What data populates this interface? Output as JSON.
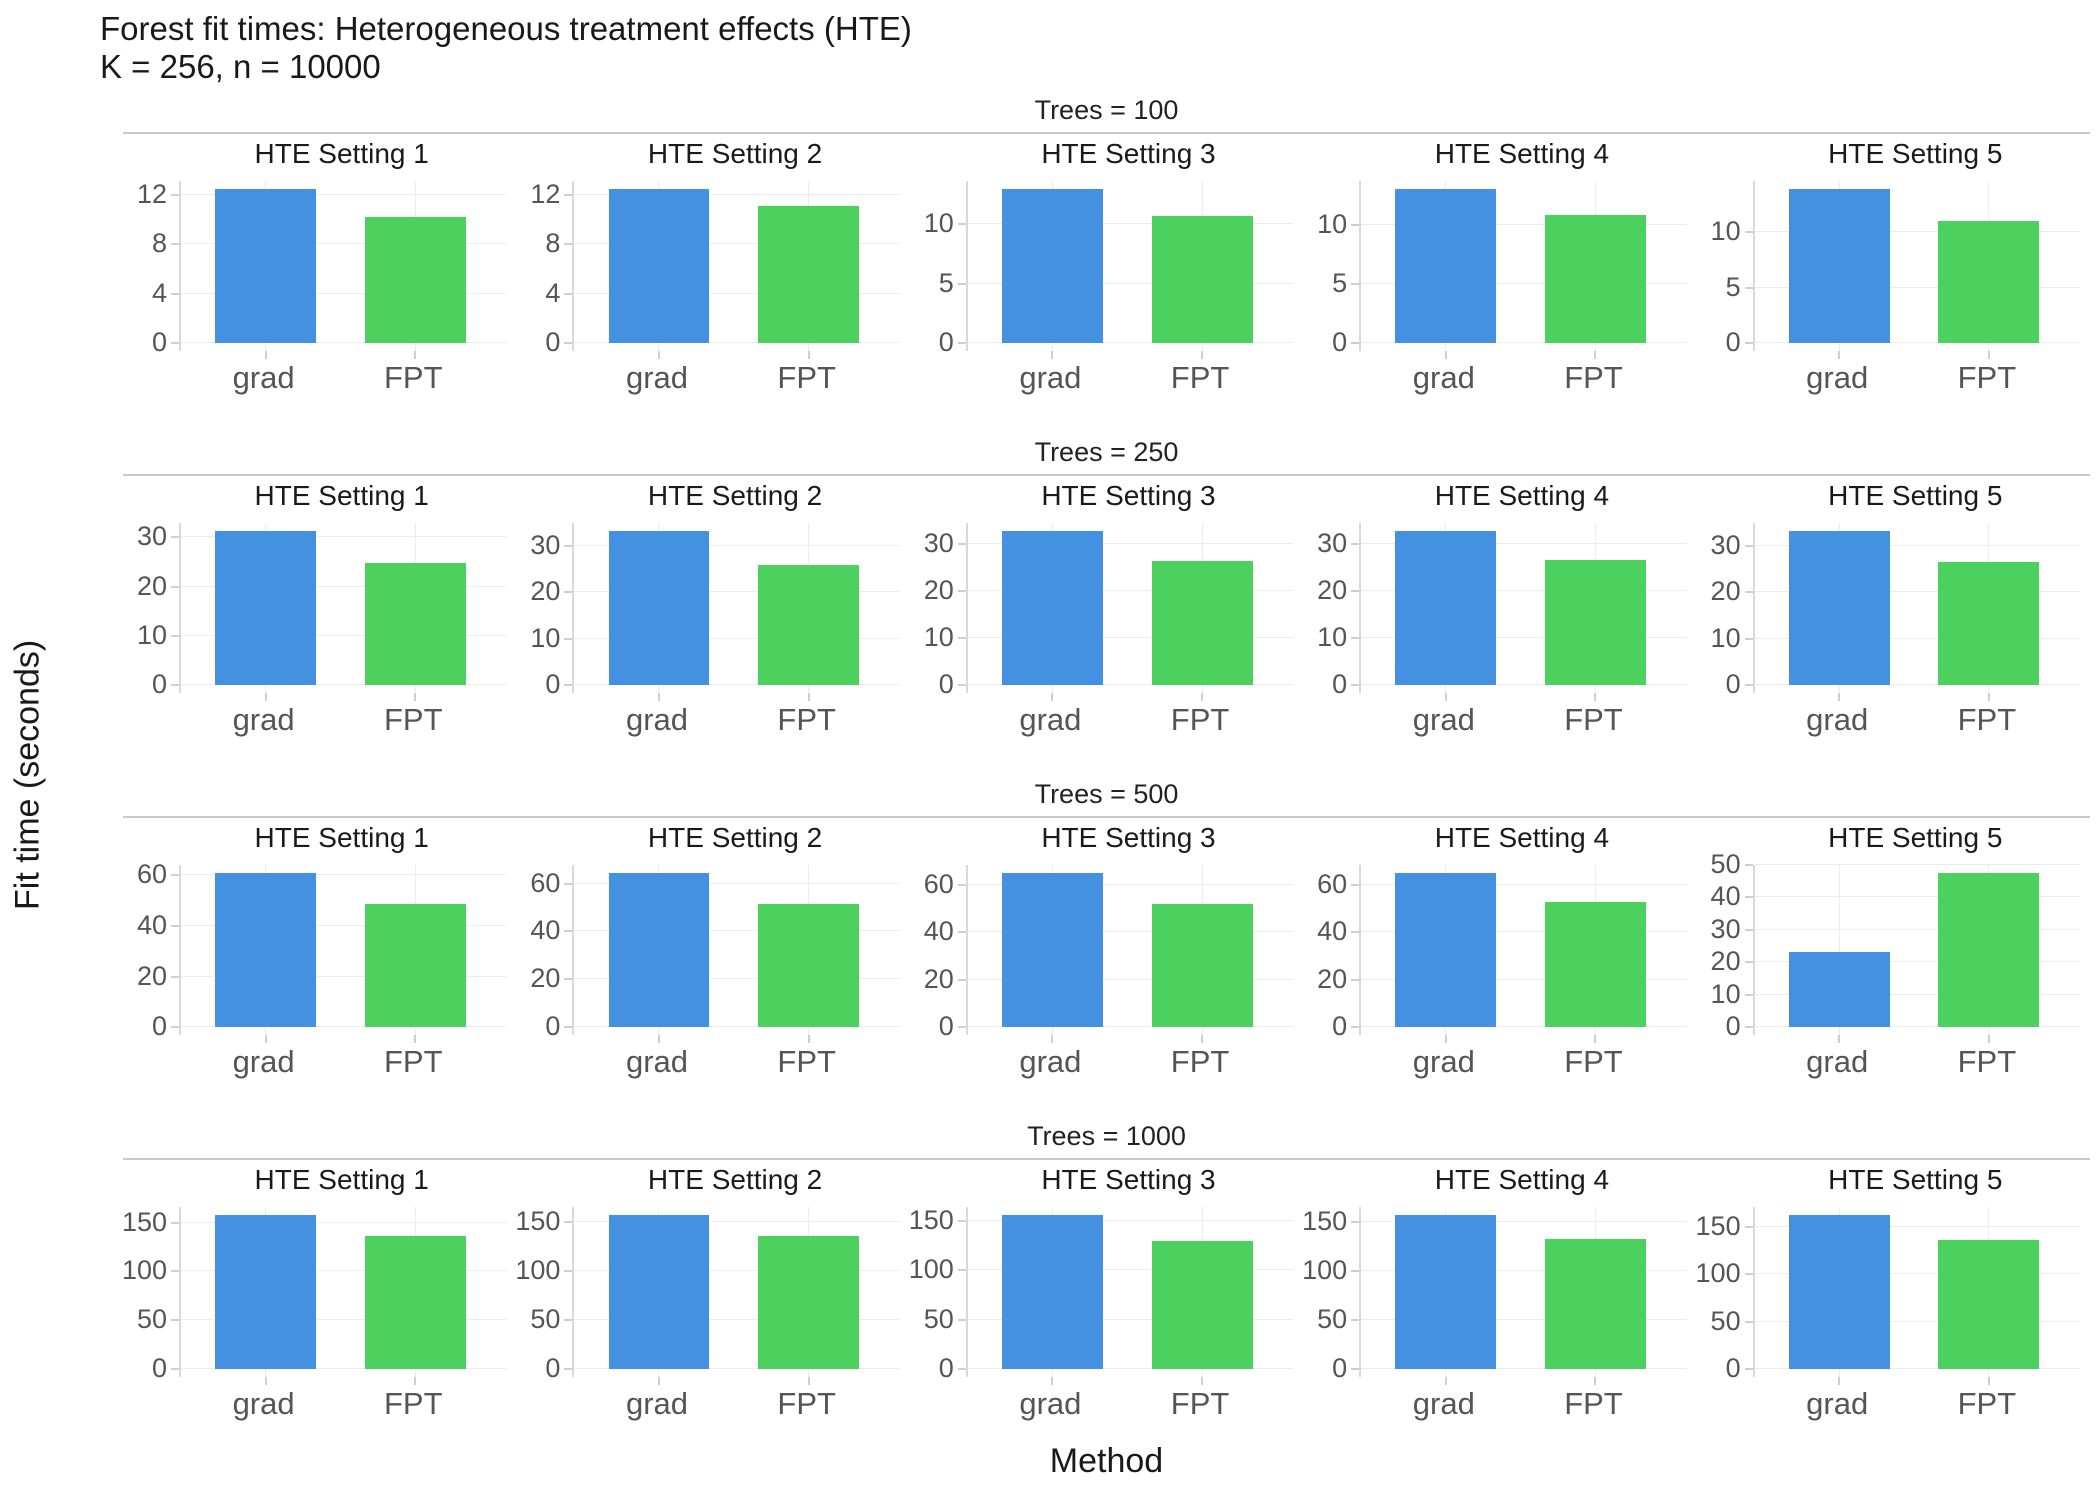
{
  "header": {
    "title": "Forest fit times: Heterogeneous treatment effects (HTE)",
    "subtitle": "K = 256, n = 10000"
  },
  "chart_data": {
    "type": "bar",
    "title": "Forest fit times: Heterogeneous treatment effects (HTE)",
    "subtitle": "K = 256, n = 10000",
    "xlabel": "Method",
    "ylabel": "Fit time (seconds)",
    "categories": [
      "grad",
      "FPT"
    ],
    "bar_colors": {
      "grad": "#4491e1",
      "FPT": "#4cd15e"
    },
    "grid": "on",
    "legend_position": "none",
    "facet_rows": [
      {
        "label": "Trees = 100",
        "panels": [
          {
            "title": "HTE Setting 1",
            "yticks": [
              0,
              4,
              8,
              12
            ],
            "values": {
              "grad": 12.5,
              "FPT": 10.2
            }
          },
          {
            "title": "HTE Setting 2",
            "yticks": [
              0,
              4,
              8,
              12
            ],
            "values": {
              "grad": 12.5,
              "FPT": 11.1
            }
          },
          {
            "title": "HTE Setting 3",
            "yticks": [
              0,
              5,
              10
            ],
            "values": {
              "grad": 13.0,
              "FPT": 10.7
            }
          },
          {
            "title": "HTE Setting 4",
            "yticks": [
              0,
              5,
              10
            ],
            "values": {
              "grad": 13.1,
              "FPT": 10.9
            }
          },
          {
            "title": "HTE Setting 5",
            "yticks": [
              0,
              5,
              10
            ],
            "values": {
              "grad": 13.9,
              "FPT": 11.0
            }
          }
        ]
      },
      {
        "label": "Trees = 250",
        "panels": [
          {
            "title": "HTE Setting 1",
            "yticks": [
              0,
              10,
              20,
              30
            ],
            "values": {
              "grad": 31.3,
              "FPT": 24.8
            }
          },
          {
            "title": "HTE Setting 2",
            "yticks": [
              0,
              10,
              20,
              30
            ],
            "values": {
              "grad": 33.2,
              "FPT": 25.8
            }
          },
          {
            "title": "HTE Setting 3",
            "yticks": [
              0,
              10,
              20,
              30
            ],
            "values": {
              "grad": 32.8,
              "FPT": 26.4
            }
          },
          {
            "title": "HTE Setting 4",
            "yticks": [
              0,
              10,
              20,
              30
            ],
            "values": {
              "grad": 32.9,
              "FPT": 26.6
            }
          },
          {
            "title": "HTE Setting 5",
            "yticks": [
              0,
              10,
              20,
              30
            ],
            "values": {
              "grad": 33.2,
              "FPT": 26.5
            }
          }
        ]
      },
      {
        "label": "Trees = 500",
        "panels": [
          {
            "title": "HTE Setting 1",
            "yticks": [
              0,
              20,
              40,
              60
            ],
            "values": {
              "grad": 61.0,
              "FPT": 48.7
            }
          },
          {
            "title": "HTE Setting 2",
            "yticks": [
              0,
              20,
              40,
              60
            ],
            "values": {
              "grad": 64.5,
              "FPT": 51.5
            }
          },
          {
            "title": "HTE Setting 3",
            "yticks": [
              0,
              20,
              40,
              60
            ],
            "values": {
              "grad": 65.0,
              "FPT": 52.0
            }
          },
          {
            "title": "HTE Setting 4",
            "yticks": [
              0,
              20,
              40,
              60
            ],
            "values": {
              "grad": 65.0,
              "FPT": 52.5
            }
          },
          {
            "title": "HTE Setting 5",
            "yticks": [
              0,
              10,
              20,
              30,
              40,
              50
            ],
            "values": {
              "grad": 23.0,
              "FPT": 47.5
            }
          }
        ]
      },
      {
        "label": "Trees = 1000",
        "panels": [
          {
            "title": "HTE Setting 1",
            "yticks": [
              0,
              50,
              100,
              150
            ],
            "values": {
              "grad": 158,
              "FPT": 136
            }
          },
          {
            "title": "HTE Setting 2",
            "yticks": [
              0,
              50,
              100,
              150
            ],
            "values": {
              "grad": 157,
              "FPT": 135
            }
          },
          {
            "title": "HTE Setting 3",
            "yticks": [
              0,
              50,
              100,
              150
            ],
            "values": {
              "grad": 156,
              "FPT": 130
            }
          },
          {
            "title": "HTE Setting 4",
            "yticks": [
              0,
              50,
              100,
              150
            ],
            "values": {
              "grad": 157,
              "FPT": 132
            }
          },
          {
            "title": "HTE Setting 5",
            "yticks": [
              0,
              50,
              100,
              150
            ],
            "values": {
              "grad": 163,
              "FPT": 136
            }
          }
        ]
      }
    ]
  }
}
